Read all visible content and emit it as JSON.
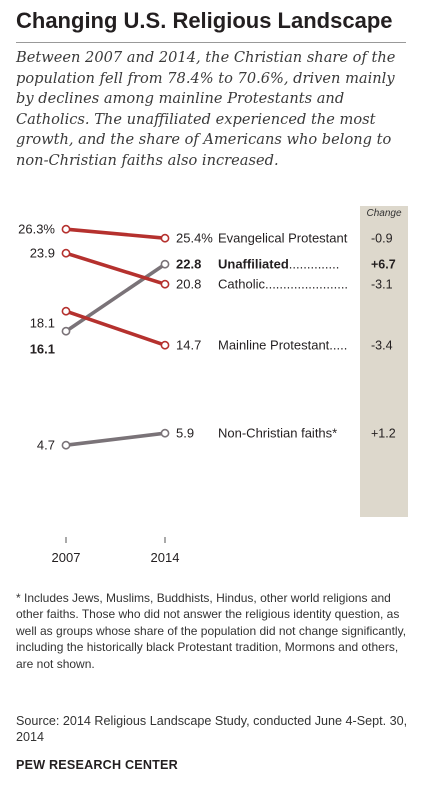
{
  "title": "Changing U.S. Religious Landscape",
  "subtitle": "Between 2007 and 2014, the Christian share of the population fell from 78.4% to 70.6%, driven mainly by declines among mainline Protestants and Catholics. The unaffiliated experienced the most growth, and the share of Americans who belong to non-Christian faiths also increased.",
  "footnote": "* Includes Jews, Muslims, Buddhists, Hindus, other world religions and other faiths. Those who did not answer the religious identity question, as well as groups whose share of the population did not change significantly, including the historically black Protestant tradition, Mormons and others, are not shown.",
  "source": "Source: 2014 Religious Landscape Study, conducted June 4-Sept. 30, 2014",
  "organization": "PEW RESEARCH CENTER",
  "colors": {
    "decline": "#b5312e",
    "growth": "#7a7378",
    "change_column": "#ddd8cc"
  },
  "chart_data": {
    "type": "line",
    "x": [
      "2007",
      "2014"
    ],
    "change_header": "Change",
    "series": [
      {
        "name": "Evangelical Protestant",
        "values": [
          26.3,
          25.4
        ],
        "labels": [
          "26.3%",
          "25.4%"
        ],
        "change": "-0.9",
        "leader": "",
        "bold": false,
        "color": "decline"
      },
      {
        "name": "Unaffiliated",
        "values": [
          16.1,
          22.8
        ],
        "labels": [
          "16.1",
          "22.8"
        ],
        "change": "+6.7",
        "leader": "..............",
        "bold": true,
        "color": "growth"
      },
      {
        "name": "Catholic",
        "values": [
          23.9,
          20.8
        ],
        "labels": [
          "23.9",
          "20.8"
        ],
        "change": "-3.1",
        "leader": ".......................",
        "bold": false,
        "color": "decline"
      },
      {
        "name": "Mainline Protestant",
        "values": [
          18.1,
          14.7
        ],
        "labels": [
          "18.1",
          "14.7"
        ],
        "change": "-3.4",
        "leader": ".....",
        "bold": false,
        "color": "decline"
      },
      {
        "name": "Non-Christian faiths*",
        "values": [
          4.7,
          5.9
        ],
        "labels": [
          "4.7",
          "5.9"
        ],
        "change": "+1.2",
        "leader": "",
        "bold": false,
        "color": "growth"
      }
    ]
  }
}
